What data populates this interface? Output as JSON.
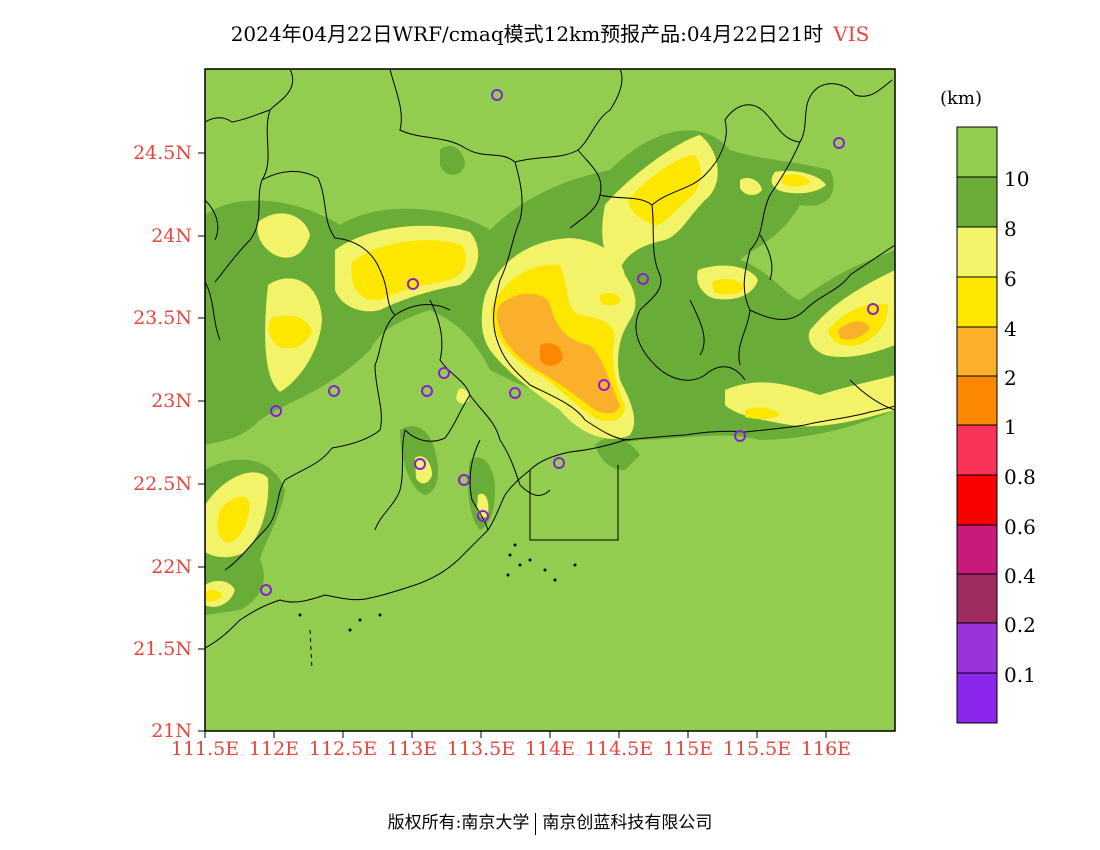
{
  "title": {
    "text": "2024年04月22日WRF/cmaq模式12km预报产品:04月22日21时",
    "variable": "VIS"
  },
  "lat_ticks": [
    "24.5N",
    "24N",
    "23.5N",
    "23N",
    "22.5N",
    "22N",
    "21.5N",
    "21N"
  ],
  "lon_ticks": [
    "111.5E",
    "112E",
    "112.5E",
    "113E",
    "113.5E",
    "114E",
    "114.5E",
    "115E",
    "115.5E",
    "116E"
  ],
  "colorbar": {
    "unit": "(km)",
    "levels": [
      "10",
      "8",
      "6",
      "4",
      "2",
      "1",
      "0.8",
      "0.6",
      "0.4",
      "0.2",
      "0.1"
    ],
    "colors": [
      "#92cd50",
      "#6aac38",
      "#f3f36a",
      "#fde600",
      "#fbb02b",
      "#fb8800",
      "#fa3358",
      "#fa0000",
      "#c81a7c",
      "#a02c60",
      "#9a33d8",
      "#8c26ec"
    ]
  },
  "map_colors": {
    "background": "#92cd50",
    "band_8_10": "#6aac38",
    "band_6_8": "#f3f36a",
    "band_4_6": "#fde600",
    "band_2_4": "#fbb02b",
    "band_1_2": "#fb8800",
    "station": "#8a1fd6",
    "axis_label": "#e8463c"
  },
  "footer": {
    "left": "版权所有:南京大学",
    "right": "南京创蓝科技有限公司"
  }
}
